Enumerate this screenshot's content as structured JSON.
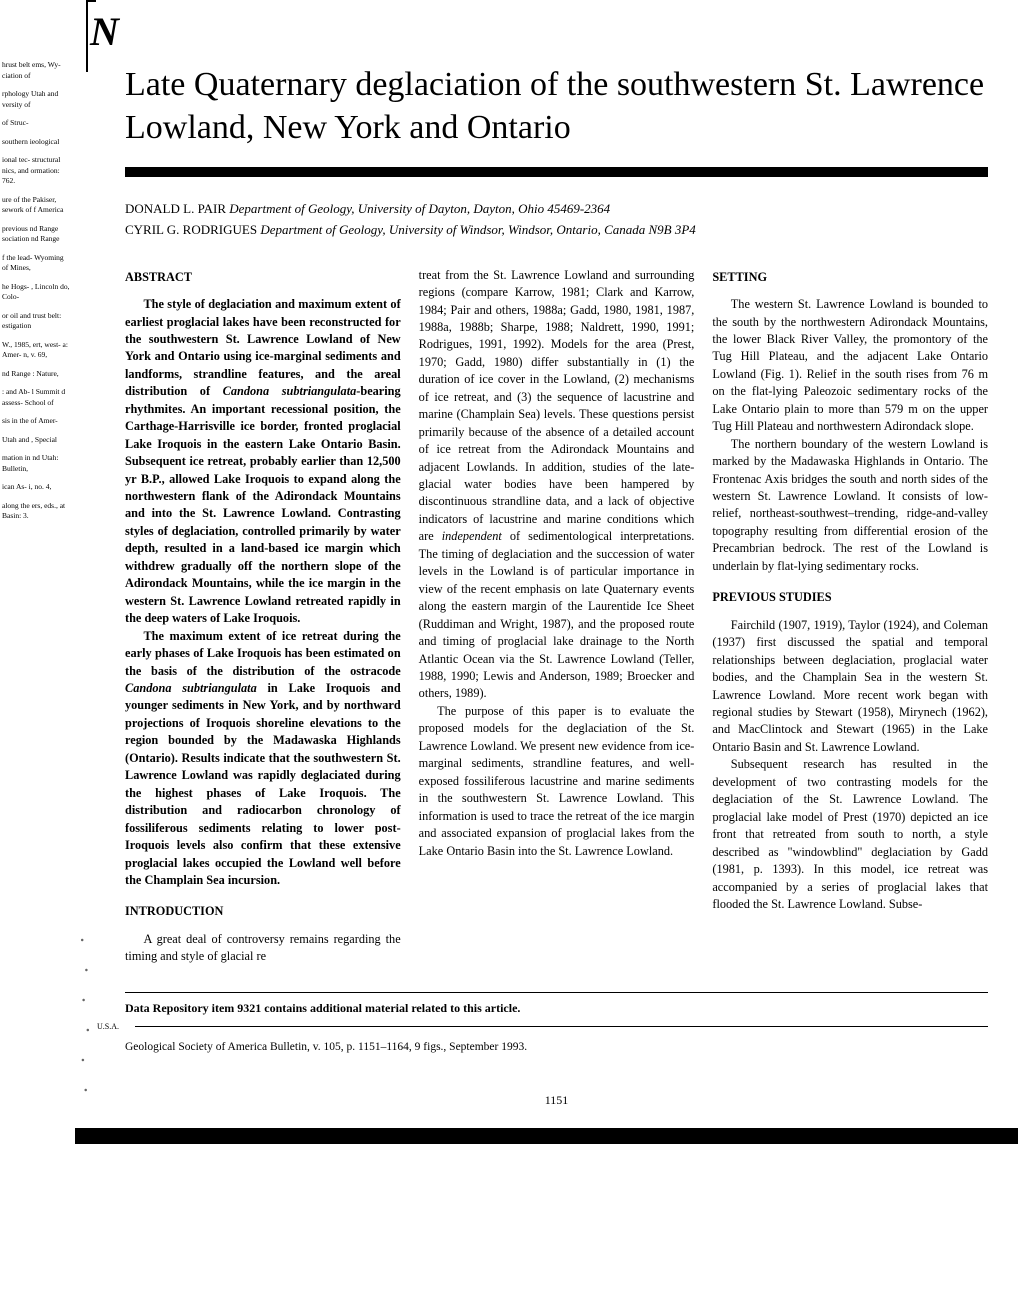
{
  "north_arrow": "N",
  "left_margin_fragments": [
    "hrust belt ems, Wy- ciation of",
    "rphology Utah and versity of",
    "of Struc-",
    "southern ieological",
    "ional tec- structural nics, and ormation: 762.",
    "ure of the Pakiser, sework of f America",
    "previous nd Range sociation nd Range",
    "f the lead- Wyoming of Mines,",
    "he Hogs- , Lincoln do, Colo-",
    "or oil and trust belt: estigation",
    "W., 1985, ert, west- a: Amer- n, v. 69,",
    "nd Range : Nature,",
    ": and Ab- l Summit d assess- School of",
    "sis in the of Amer-",
    "Utah and , Special",
    "mation in nd Utah: Bulletin,",
    "ican As- i, no. 4,",
    "along the ers, eds., at Basin: 3."
  ],
  "title": "Late Quaternary deglaciation of the southwestern St. Lawrence Lowland, New York and Ontario",
  "authors": [
    {
      "name": "DONALD L. PAIR",
      "affiliation": "Department of Geology, University of Dayton, Dayton, Ohio 45469-2364"
    },
    {
      "name": "CYRIL G. RODRIGUES",
      "affiliation": "Department of Geology, University of Windsor, Windsor, Ontario, Canada N9B 3P4"
    }
  ],
  "headings": {
    "abstract": "ABSTRACT",
    "introduction": "INTRODUCTION",
    "setting": "SETTING",
    "previous": "PREVIOUS STUDIES"
  },
  "abstract_p1": "The style of deglaciation and maximum extent of earliest proglacial lakes have been reconstructed for the southwestern St. Lawrence Lowland of New York and Ontario using ice-marginal sediments and landforms, strandline features, and the areal distribution of ",
  "abstract_p1_ital": "Candona subtriangulata",
  "abstract_p1_cont": "-bearing rhythmites. An important recessional position, the Carthage-Harrisville ice border, fronted proglacial Lake Iroquois in the eastern Lake Ontario Basin. Subsequent ice retreat, probably earlier than 12,500 yr B.P., allowed Lake Iroquois to expand along the northwestern flank of the Adirondack Mountains and into the St. Lawrence Lowland. Contrasting styles of deglaciation, controlled primarily by water depth, resulted in a land-based ice margin which withdrew gradually off the northern slope of the Adirondack Mountains, while the ice margin in the western St. Lawrence Lowland retreated rapidly in the deep waters of Lake Iroquois.",
  "abstract_p2a": "The maximum extent of ice retreat during the early phases of Lake Iroquois has been estimated on the basis of the distribution of the ostracode ",
  "abstract_p2_ital": "Candona subtriangulata",
  "abstract_p2b": " in Lake Iroquois and younger sediments in New York, and by northward projections of Iroquois shoreline elevations to the region bounded by the Madawaska Highlands (Ontario). Results indicate that the southwestern St. Lawrence Lowland was rapidly deglaciated during the highest phases of Lake Iroquois. The distribution and radiocarbon chronology of fossiliferous sediments relating to lower post-Iroquois levels also confirm that these extensive proglacial lakes occupied the Lowland well before the Champlain Sea incursion.",
  "intro_p1": "A great deal of controversy remains regarding the timing and style of glacial re",
  "col2_p1": "treat from the St. Lawrence Lowland and surrounding regions (compare Karrow, 1981; Clark and Karrow, 1984; Pair and others, 1988a; Gadd, 1980, 1981, 1987, 1988a, 1988b; Sharpe, 1988; Naldrett, 1990, 1991; Rodrigues, 1991, 1992). Models for the area (Prest, 1970; Gadd, 1980) differ substantially in (1) the duration of ice cover in the Lowland, (2) mechanisms of ice retreat, and (3) the sequence of lacustrine and marine (Champlain Sea) levels. These questions persist primarily because of the absence of a detailed account of ice retreat from the Adirondack Mountains and adjacent Lowlands. In addition, studies of the late-glacial water bodies have been hampered by discontinuous strandline data, and a lack of objective indicators of lacustrine and marine conditions which are ",
  "col2_p1_ital": "independent",
  "col2_p1_cont": " of sedimentological interpretations. The timing of deglaciation and the succession of water levels in the Lowland is of particular importance in view of the recent emphasis on late Quaternary events along the eastern margin of the Laurentide Ice Sheet (Ruddiman and Wright, 1987), and the proposed route and timing of proglacial lake drainage to the North Atlantic Ocean via the St. Lawrence Lowland (Teller, 1988, 1990; Lewis and Anderson, 1989; Broecker and others, 1989).",
  "col2_p2": "The purpose of this paper is to evaluate the proposed models for the deglaciation of the St. Lawrence Lowland. We present new evidence from ice-marginal sediments, strandline features, and well-exposed fossiliferous lacustrine and marine sediments in the southwestern St. Lawrence Lowland. This information is used to trace the retreat of the ice margin and associated expansion of proglacial lakes from the Lake Ontario Basin into the St. Lawrence Lowland.",
  "setting_p1": "The western St. Lawrence Lowland is bounded to the south by the northwestern Adirondack Mountains, the lower Black River Valley, the promontory of the Tug Hill Plateau, and the adjacent Lake Ontario Lowland (Fig. 1). Relief in the south rises from 76 m on the flat-lying Paleozoic sedimentary rocks of the Lake Ontario plain to more than 579 m on the upper Tug Hill Plateau and northwestern Adirondack slope.",
  "setting_p2": "The northern boundary of the western Lowland is marked by the Madawaska Highlands in Ontario. The Frontenac Axis bridges the south and north sides of the western St. Lawrence Lowland. It consists of low-relief, northeast-southwest–trending, ridge-and-valley topography resulting from differential erosion of the Precambrian bedrock. The rest of the Lowland is underlain by flat-lying sedimentary rocks.",
  "previous_p1": "Fairchild (1907, 1919), Taylor (1924), and Coleman (1937) first discussed the spatial and temporal relationships between deglaciation, proglacial water bodies, and the Champlain Sea in the western St. Lawrence Lowland. More recent work began with regional studies by Stewart (1958), Mirynech (1962), and MacClintock and Stewart (1965) in the Lake Ontario Basin and St. Lawrence Lowland.",
  "previous_p2": "Subsequent research has resulted in the development of two contrasting models for the deglaciation of the St. Lawrence Lowland. The proglacial lake model of Prest (1970) depicted an ice front that retreated from south to north, a style described as \"windowblind\" deglaciation by Gadd (1981, p. 1393). In this model, ice retreat was accompanied by a series of proglacial lakes that flooded the St. Lawrence Lowland. Subse-",
  "footer_note": "Data Repository item 9321 contains additional material related to this article.",
  "footer_usa": "U.S.A.",
  "footer_cite": "Geological Society of America Bulletin, v. 105, p. 1151–1164, 9 figs., September 1993.",
  "page_number": "1151"
}
